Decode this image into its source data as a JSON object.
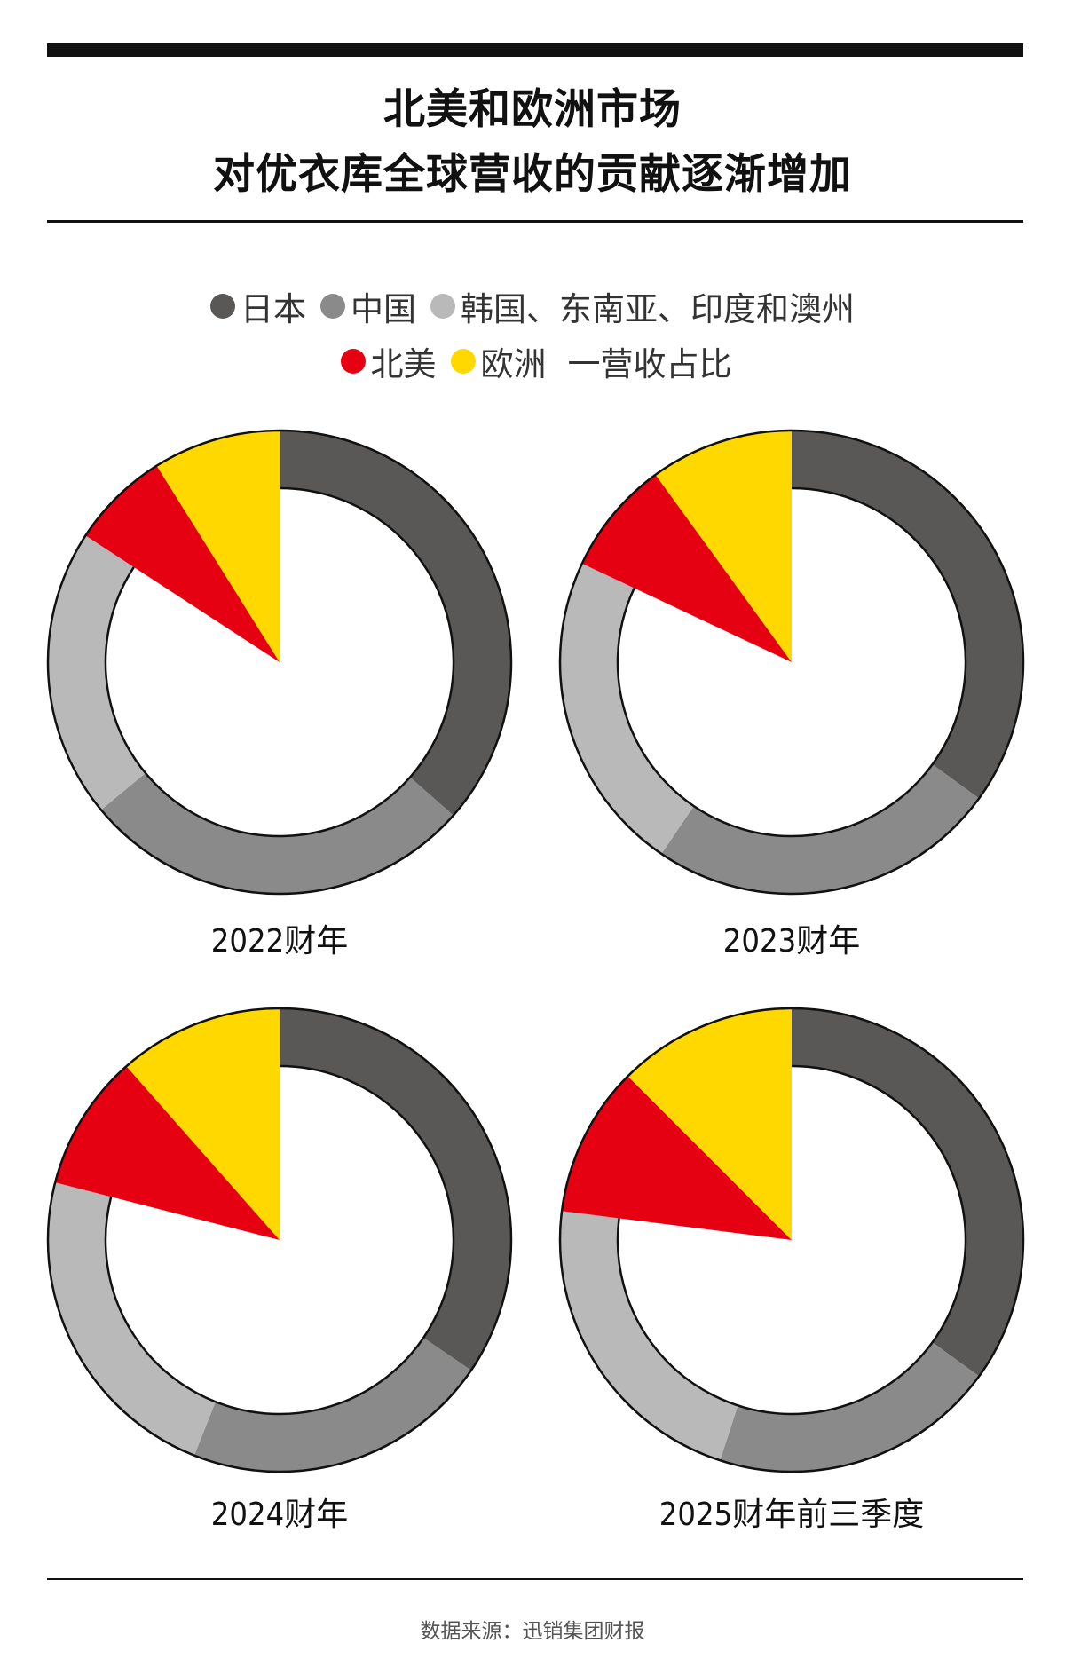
{
  "title": {
    "line1": "北美和欧洲市场",
    "line2": "对优衣库全球营收的贡献逐渐增加"
  },
  "legend": {
    "items": [
      {
        "label": "日本",
        "color": "#595856"
      },
      {
        "label": "中国",
        "color": "#8a8a8a"
      },
      {
        "label": "韩国、东南亚、印度和澳州",
        "color": "#b8b9b8"
      },
      {
        "label": "北美",
        "color": "#e50012"
      },
      {
        "label": "欧洲",
        "color": "#ffd800"
      }
    ],
    "note": "一营收占比"
  },
  "chart_data": [
    {
      "type": "pie",
      "label": "2022财年",
      "categories": [
        "日本",
        "中国",
        "韩国、东南亚、印度和澳州",
        "北美",
        "欧洲"
      ],
      "values": [
        36.5,
        27.5,
        20.2,
        6.9,
        8.9
      ]
    },
    {
      "type": "pie",
      "label": "2023财年",
      "categories": [
        "日本",
        "中国",
        "韩国、东南亚、印度和澳州",
        "北美",
        "欧洲"
      ],
      "values": [
        35.0,
        24.5,
        22.5,
        8.0,
        10.0
      ]
    },
    {
      "type": "pie",
      "label": "2024财年",
      "categories": [
        "日本",
        "中国",
        "韩国、东南亚、印度和澳州",
        "北美",
        "欧洲"
      ],
      "values": [
        34.5,
        21.5,
        23.0,
        9.5,
        11.5
      ]
    },
    {
      "type": "pie",
      "label": "2025财年前三季度",
      "categories": [
        "日本",
        "中国",
        "韩国、东南亚、印度和澳州",
        "北美",
        "欧洲"
      ],
      "values": [
        35.0,
        20.0,
        22.0,
        10.5,
        12.5
      ]
    }
  ],
  "source": "数据来源：迅销集团财报"
}
